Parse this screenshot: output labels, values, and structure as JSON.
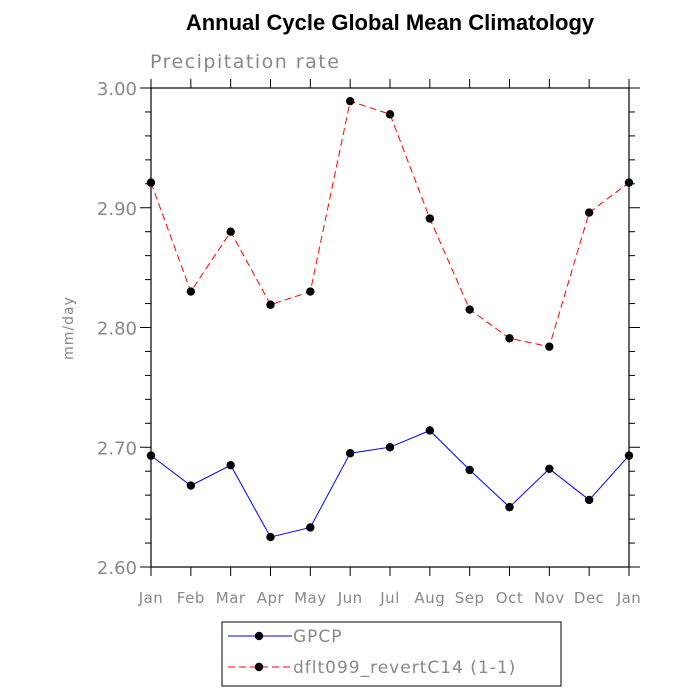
{
  "chart_data": {
    "type": "line",
    "title": "Annual Cycle Global Mean Climatology",
    "subtitle": "Precipitation rate",
    "ylabel": "mm/day",
    "xlabel": "",
    "categories": [
      "Jan",
      "Feb",
      "Mar",
      "Apr",
      "May",
      "Jun",
      "Jul",
      "Aug",
      "Sep",
      "Oct",
      "Nov",
      "Dec",
      "Jan"
    ],
    "ylim": [
      2.6,
      3.0
    ],
    "yticks": [
      2.6,
      2.7,
      2.8,
      2.9,
      3.0
    ],
    "ytick_labels": [
      "2.60",
      "2.70",
      "2.80",
      "2.90",
      "3.00"
    ],
    "grid": false,
    "legend_position": "bottom",
    "series": [
      {
        "name": "GPCP",
        "color": "#0000ff",
        "dash": "solid",
        "values": [
          2.693,
          2.668,
          2.685,
          2.625,
          2.633,
          2.695,
          2.7,
          2.714,
          2.681,
          2.65,
          2.682,
          2.656,
          2.693
        ]
      },
      {
        "name": "dflt099_revertC14 (1-1)",
        "color": "#ff0000",
        "dash": "dashed",
        "values": [
          2.921,
          2.83,
          2.88,
          2.819,
          2.83,
          2.989,
          2.978,
          2.891,
          2.815,
          2.791,
          2.784,
          2.896,
          2.921
        ]
      }
    ]
  }
}
